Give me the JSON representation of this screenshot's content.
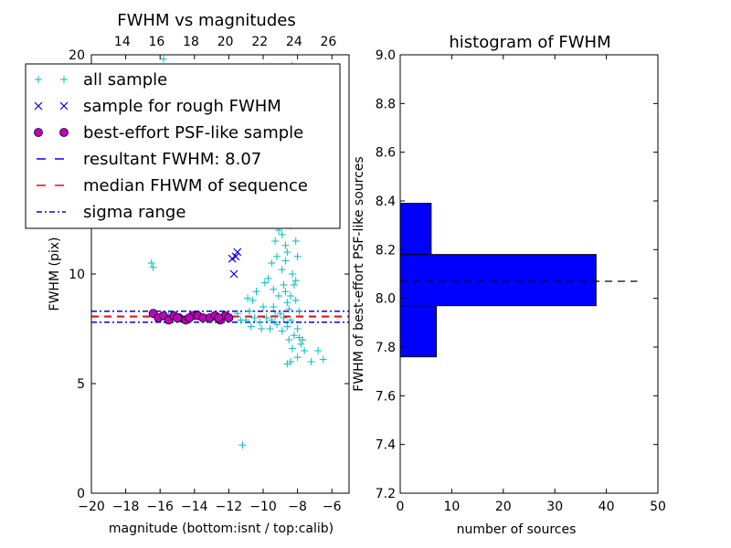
{
  "chart_data": [
    {
      "type": "scatter",
      "title": "FWHM vs magnitudes",
      "xlabel": "magnitude (bottom:isnt / top:calib)",
      "ylabel": "FWHM (pix)",
      "xlim": [
        -20,
        -5
      ],
      "ylim": [
        0,
        20
      ],
      "top_xlim": [
        12.2,
        27.2
      ],
      "x_ticks": [
        {
          "value": -20,
          "label": "−20"
        },
        {
          "value": -18,
          "label": "−18"
        },
        {
          "value": -16,
          "label": "−16"
        },
        {
          "value": -14,
          "label": "−14"
        },
        {
          "value": -12,
          "label": "−12"
        },
        {
          "value": -10,
          "label": "−10"
        },
        {
          "value": -8,
          "label": "−8"
        },
        {
          "value": -6,
          "label": "−6"
        }
      ],
      "top_ticks": [
        14,
        16,
        18,
        20,
        22,
        24,
        26
      ],
      "y_ticks": [
        0,
        5,
        10,
        20
      ],
      "series": [
        {
          "name": "all sample",
          "marker": "plus",
          "color": "#00bfbf",
          "points": [
            [
              -16.5,
              10.5
            ],
            [
              -16.4,
              10.3
            ],
            [
              -15.5,
              8.1
            ],
            [
              -15.0,
              8.0
            ],
            [
              -14.2,
              8.1
            ],
            [
              -13.5,
              8.0
            ],
            [
              -12.8,
              7.9
            ],
            [
              -12.0,
              8.0
            ],
            [
              -11.5,
              8.2
            ],
            [
              -11.0,
              7.9
            ],
            [
              -10.8,
              8.3
            ],
            [
              -10.5,
              8.0
            ],
            [
              -10.2,
              7.8
            ],
            [
              -10.0,
              8.5
            ],
            [
              -10.1,
              7.5
            ],
            [
              -10.7,
              7.6
            ],
            [
              -10.9,
              8.9
            ],
            [
              -11.3,
              7.9
            ],
            [
              -9.8,
              8.0
            ],
            [
              -9.6,
              7.5
            ],
            [
              -9.5,
              7.9
            ],
            [
              -9.4,
              8.5
            ],
            [
              -9.3,
              8.1
            ],
            [
              -9.2,
              7.7
            ],
            [
              -9.1,
              9.0
            ],
            [
              -9.0,
              8.2
            ],
            [
              -8.9,
              7.4
            ],
            [
              -8.8,
              8.0
            ],
            [
              -8.7,
              9.2
            ],
            [
              -8.6,
              7.6
            ],
            [
              -8.5,
              8.4
            ],
            [
              -8.4,
              7.9
            ],
            [
              -8.3,
              10.0
            ],
            [
              -8.2,
              7.2
            ],
            [
              -8.1,
              8.8
            ],
            [
              -8.0,
              7.5
            ],
            [
              -7.9,
              7.1
            ],
            [
              -7.8,
              6.8
            ],
            [
              -7.7,
              7.0
            ],
            [
              -7.6,
              6.5
            ],
            [
              -9.7,
              9.8
            ],
            [
              -9.5,
              10.5
            ],
            [
              -9.3,
              11.5
            ],
            [
              -9.1,
              12.0
            ],
            [
              -9.0,
              13.5
            ],
            [
              -8.9,
              10.2
            ],
            [
              -8.8,
              12.8
            ],
            [
              -8.7,
              14.5
            ],
            [
              -8.6,
              11.0
            ],
            [
              -8.5,
              15.5
            ],
            [
              -8.4,
              12.2
            ],
            [
              -8.3,
              16.8
            ],
            [
              -8.2,
              13.0
            ],
            [
              -8.1,
              11.5
            ],
            [
              -8.0,
              10.8
            ],
            [
              -8.5,
              18.0
            ],
            [
              -8.3,
              19.5
            ],
            [
              -8.6,
              13.8
            ],
            [
              -8.0,
              12.5
            ],
            [
              -8.2,
              9.5
            ],
            [
              -8.4,
              9.0
            ],
            [
              -8.8,
              9.5
            ],
            [
              -9.2,
              10.8
            ],
            [
              -9.4,
              9.3
            ],
            [
              -8.6,
              8.7
            ],
            [
              -8.1,
              9.7
            ],
            [
              -7.9,
              8.3
            ],
            [
              -8.7,
              10.6
            ],
            [
              -8.9,
              11.8
            ],
            [
              -8.5,
              7.0
            ],
            [
              -8.3,
              6.6
            ],
            [
              -8.0,
              6.2
            ],
            [
              -8.4,
              6.0
            ],
            [
              -6.8,
              6.5
            ],
            [
              -6.5,
              6.1
            ],
            [
              -7.2,
              6.0
            ],
            [
              -8.6,
              5.9
            ],
            [
              -10.4,
              9.2
            ],
            [
              -10.6,
              8.8
            ],
            [
              -9.9,
              9.6
            ],
            [
              -11.2,
              2.2
            ],
            [
              -15.8,
              19.8
            ],
            [
              -9.0,
              14.8
            ],
            [
              -8.8,
              16.0
            ],
            [
              -8.2,
              17.2
            ],
            [
              -8.4,
              13.3
            ],
            [
              -8.7,
              11.3
            ],
            [
              -8.1,
              14.0
            ]
          ]
        },
        {
          "name": "sample for rough FWHM",
          "marker": "x",
          "color": "#0000ff",
          "points": [
            [
              -11.8,
              10.7
            ],
            [
              -11.6,
              10.8
            ],
            [
              -11.7,
              10.0
            ],
            [
              -11.5,
              11.0
            ]
          ]
        },
        {
          "name": "best-effort PSF-like sample",
          "marker": "circle",
          "color": "#bf00bf",
          "points": [
            [
              -16.4,
              8.2
            ],
            [
              -16.1,
              8.0
            ],
            [
              -15.8,
              8.1
            ],
            [
              -15.5,
              7.9
            ],
            [
              -15.2,
              8.1
            ],
            [
              -14.9,
              8.0
            ],
            [
              -14.5,
              7.9
            ],
            [
              -14.1,
              8.1
            ],
            [
              -13.8,
              8.1
            ],
            [
              -13.5,
              8.0
            ],
            [
              -13.1,
              8.0
            ],
            [
              -12.8,
              8.1
            ],
            [
              -12.5,
              7.9
            ],
            [
              -12.2,
              8.1
            ],
            [
              -12.0,
              8.0
            ],
            [
              -14.3,
              8.0
            ],
            [
              -12.6,
              8.0
            ],
            [
              -15.0,
              8.0
            ]
          ]
        }
      ],
      "hlines": [
        {
          "name": "resultant FWHM: 8.07",
          "y": 8.07,
          "color": "#0000ff",
          "style": "dashed"
        },
        {
          "name": "median FHWM of sequence",
          "y": 8.05,
          "color": "#ff0000",
          "style": "dashed"
        },
        {
          "name": "sigma range",
          "y": 8.3,
          "color": "#0000ff",
          "style": "dashdot"
        },
        {
          "name": "",
          "y": 7.8,
          "color": "#0000ff",
          "style": "dashdot"
        }
      ],
      "legend": {
        "placement": "top-left",
        "entries": [
          {
            "label": "all sample",
            "marker": "plus",
            "color": "#00bfbf"
          },
          {
            "label": "sample for rough FWHM",
            "marker": "x",
            "color": "#0000ff"
          },
          {
            "label": "best-effort PSF-like sample",
            "marker": "circle",
            "color": "#bf00bf"
          },
          {
            "label": "resultant FWHM: 8.07",
            "marker": "dashed",
            "color": "#0000ff"
          },
          {
            "label": "median FHWM of sequence",
            "marker": "dashed",
            "color": "#ff0000"
          },
          {
            "label": "sigma range",
            "marker": "dashdot",
            "color": "#0000ff"
          }
        ]
      }
    },
    {
      "type": "bar",
      "orientation": "horizontal",
      "title": "histogram of FWHM",
      "xlabel": "number of sources",
      "ylabel": "FWHM of best-effort PSF-like sources",
      "xlim": [
        0,
        50
      ],
      "ylim": [
        7.2,
        9.0
      ],
      "x_ticks": [
        0,
        10,
        20,
        30,
        40,
        50
      ],
      "y_ticks": [
        "7.2",
        "7.4",
        "7.6",
        "7.8",
        "8.0",
        "8.2",
        "8.4",
        "8.6",
        "8.8",
        "9.0"
      ],
      "bins": [
        {
          "low": 7.76,
          "high": 7.97,
          "count": 7
        },
        {
          "low": 7.97,
          "high": 8.18,
          "count": 38
        },
        {
          "low": 8.18,
          "high": 8.39,
          "count": 6
        }
      ],
      "bar_color": "#0000ff",
      "reference_line": {
        "y": 8.07,
        "x_range": [
          0,
          46
        ],
        "style": "dashed",
        "color": "#000000"
      }
    }
  ]
}
